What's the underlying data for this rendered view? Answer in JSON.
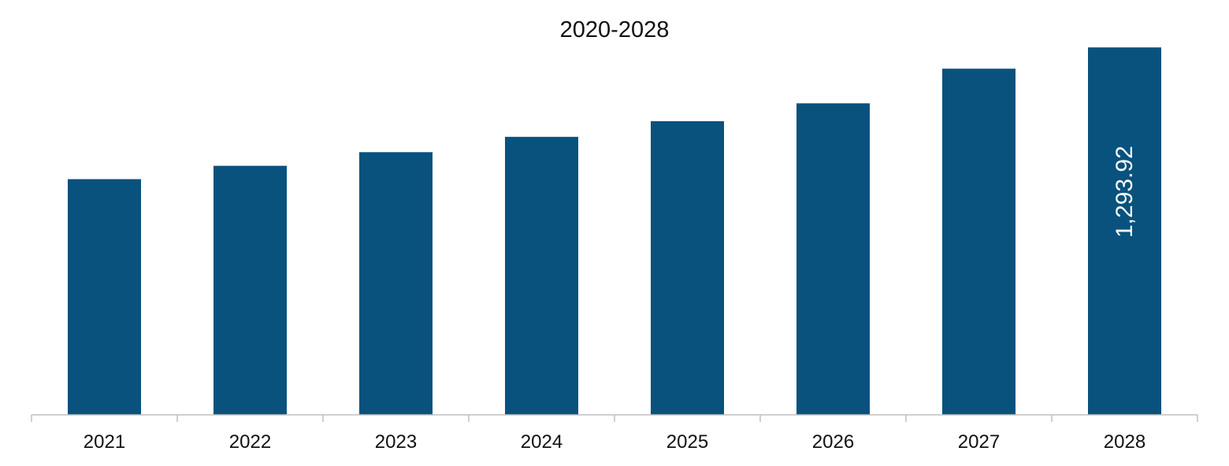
{
  "chart_data": {
    "type": "bar",
    "title": "2020-2028",
    "xlabel": "",
    "ylabel": "",
    "categories": [
      "2021",
      "2022",
      "2023",
      "2024",
      "2025",
      "2026",
      "2027",
      "2028"
    ],
    "values": [
      830,
      877,
      925,
      979,
      1034,
      1097,
      1219,
      1293.92
    ],
    "data_labels": [
      "",
      "",
      "",
      "",
      "",
      "",
      "",
      "1,293.92"
    ],
    "ylim": [
      0,
      1350
    ],
    "grid": false,
    "legend": "none",
    "bar_color": "#08527d",
    "axis_color": "#bfbfbf"
  }
}
